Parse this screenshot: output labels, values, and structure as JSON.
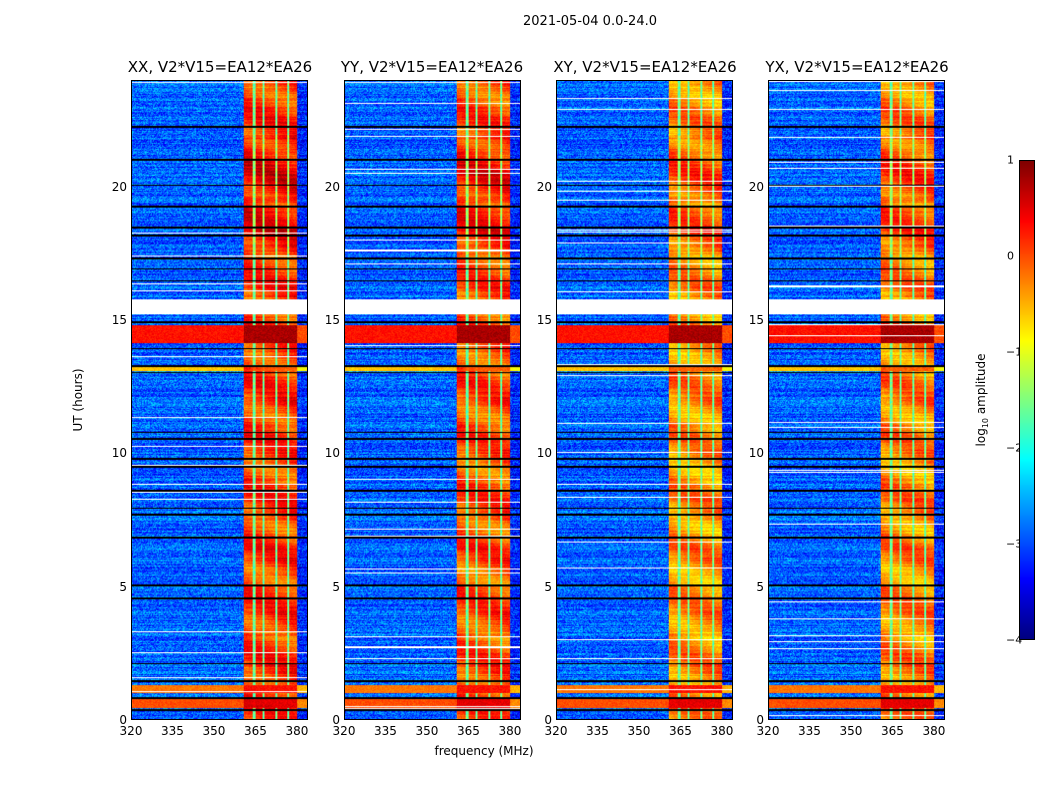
{
  "chart_data": {
    "type": "heatmap",
    "suptitle": "2021-05-04 0.0-24.0",
    "xlabel": "frequency (MHz)",
    "ylabel": "UT (hours)",
    "xlim": [
      320,
      384
    ],
    "ylim": [
      0,
      24
    ],
    "xticks": [
      "320",
      "335",
      "350",
      "365",
      "380"
    ],
    "xtick_values": [
      320,
      335,
      350,
      365,
      380
    ],
    "yticks": [
      "0",
      "5",
      "10",
      "15",
      "20"
    ],
    "ytick_values": [
      0,
      5,
      10,
      15,
      20
    ],
    "panels": [
      {
        "title": "XX, V2*V15=EA12*EA26",
        "band_level": 0.1
      },
      {
        "title": "YY, V2*V15=EA12*EA26",
        "band_level": 0.0
      },
      {
        "title": "XY, V2*V15=EA12*EA26",
        "band_level": -0.3
      },
      {
        "title": "YX, V2*V15=EA12*EA26",
        "band_level": -0.25
      }
    ],
    "colorbar": {
      "label_main": "log",
      "label_sub": "10",
      "label_rest": " amplitude",
      "range": [
        -4,
        1
      ],
      "ticks": [
        "1",
        "0",
        "−1",
        "−2",
        "−3",
        "−4"
      ],
      "tick_values": [
        1,
        0,
        -1,
        -2,
        -3,
        -4
      ],
      "colormap": "jet"
    },
    "background_level": -2.9,
    "rfi_band_mhz": [
      360.5,
      380.3
    ],
    "rfi_gaps_mhz": [
      364.4,
      368.0,
      372.7,
      377.0
    ],
    "flagged_gap_hours": [
      15.25,
      15.8
    ],
    "strong_rfi_hours": [
      [
        14.15,
        14.85,
        0.3
      ],
      [
        0.45,
        0.75,
        0.0
      ],
      [
        1.0,
        1.3,
        -0.2
      ],
      [
        13.1,
        13.25,
        -0.6
      ]
    ],
    "flagged_lines_hours": [
      0.35,
      0.8,
      1.45,
      2.1,
      4.55,
      5.05,
      6.85,
      7.7,
      7.95,
      8.6,
      9.5,
      9.8,
      10.55,
      10.8,
      13.05,
      13.3,
      13.95,
      14.95,
      16.5,
      16.95,
      17.35,
      18.2,
      18.5,
      19.3,
      20.1,
      21.05,
      22.3
    ]
  }
}
